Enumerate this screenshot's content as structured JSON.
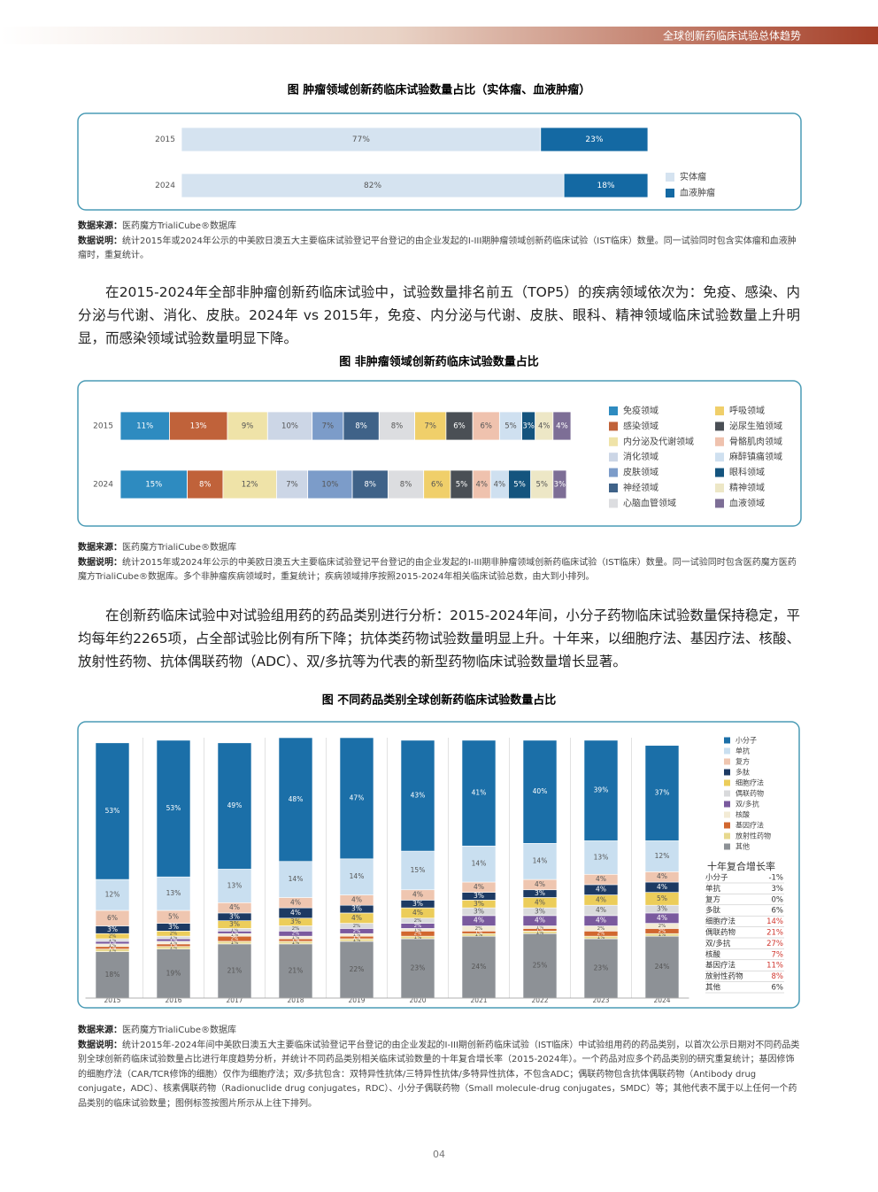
{
  "header": {
    "title": "全球创新药临床试验总体趋势"
  },
  "chart_data": [
    {
      "type": "bar",
      "orientation": "horizontal",
      "stacked": true,
      "title": "图 肿瘤领域创新药临床试验数量占比（实体瘤、血液肿瘤）",
      "categories": [
        "2015",
        "2024"
      ],
      "series": [
        {
          "name": "实体瘤",
          "color": "#d5e3f0",
          "values": [
            77,
            82
          ],
          "value_labels": [
            "77%",
            "82%"
          ]
        },
        {
          "name": "血液肿瘤",
          "color": "#1469a3",
          "values": [
            23,
            18
          ],
          "value_labels": [
            "23%",
            "18%"
          ]
        }
      ]
    },
    {
      "type": "bar",
      "orientation": "horizontal",
      "stacked": true,
      "title": "图 非肿瘤领域创新药临床试验数量占比",
      "categories": [
        "2015",
        "2024"
      ],
      "series": [
        {
          "name": "免疫领域",
          "color": "#2e8bc0",
          "values": [
            11,
            15
          ],
          "value_labels": [
            "11%",
            "15%"
          ]
        },
        {
          "name": "感染领域",
          "color": "#c0623a",
          "values": [
            13,
            8
          ],
          "value_labels": [
            "13%",
            "8%"
          ]
        },
        {
          "name": "内分泌及代谢领域",
          "color": "#efe3a8",
          "values": [
            9,
            12
          ],
          "value_labels": [
            "9%",
            "12%"
          ]
        },
        {
          "name": "消化领域",
          "color": "#ccd6e6",
          "values": [
            10,
            7
          ],
          "value_labels": [
            "10%",
            "7%"
          ]
        },
        {
          "name": "皮肤领域",
          "color": "#7c9cc9",
          "values": [
            7,
            10
          ],
          "value_labels": [
            "7%",
            "10%"
          ]
        },
        {
          "name": "神经领域",
          "color": "#3f6288",
          "values": [
            8,
            8
          ],
          "value_labels": [
            "8%",
            "8%"
          ]
        },
        {
          "name": "心脑血管领域",
          "color": "#dcdde0",
          "values": [
            8,
            8
          ],
          "value_labels": [
            "8%",
            "8%"
          ]
        },
        {
          "name": "呼吸领域",
          "color": "#f0cf6a",
          "values": [
            7,
            6
          ],
          "value_labels": [
            "7%",
            "6%"
          ]
        },
        {
          "name": "泌尿生殖领域",
          "color": "#4a4f55",
          "values": [
            6,
            5
          ],
          "value_labels": [
            "6%",
            "5%"
          ]
        },
        {
          "name": "骨骼肌肉领域",
          "color": "#efc2ae",
          "values": [
            6,
            4
          ],
          "value_labels": [
            "6%",
            "4%"
          ]
        },
        {
          "name": "麻醉镇痛领域",
          "color": "#cfe0f0",
          "values": [
            5,
            4
          ],
          "value_labels": [
            "5%",
            "4%"
          ]
        },
        {
          "name": "眼科领域",
          "color": "#14547e",
          "values": [
            3,
            5
          ],
          "value_labels": [
            "3%",
            "5%"
          ]
        },
        {
          "name": "精神领域",
          "color": "#ede7c6",
          "values": [
            4,
            5
          ],
          "value_labels": [
            "4%",
            "5%"
          ]
        },
        {
          "name": "血液领域",
          "color": "#7d6e96",
          "values": [
            4,
            3
          ],
          "value_labels": [
            "4%",
            "3%"
          ]
        }
      ]
    },
    {
      "type": "bar",
      "orientation": "vertical",
      "stacked": true,
      "title": "图 不同药品类别全球创新药临床试验数量占比",
      "categories": [
        "2015",
        "2016",
        "2017",
        "2018",
        "2019",
        "2020",
        "2021",
        "2022",
        "2023",
        "2024"
      ],
      "series": [
        {
          "name": "小分子",
          "color": "#1b6fa8",
          "values": [
            53,
            53,
            49,
            48,
            47,
            43,
            41,
            40,
            39,
            37
          ],
          "value_labels": [
            "53%",
            "53%",
            "49%",
            "48%",
            "47%",
            "43%",
            "41%",
            "40%",
            "39%",
            "37%"
          ]
        },
        {
          "name": "单抗",
          "color": "#c9dff0",
          "values": [
            12,
            13,
            13,
            14,
            14,
            15,
            14,
            14,
            13,
            12
          ],
          "value_labels": [
            "12%",
            "13%",
            "13%",
            "14%",
            "14%",
            "15%",
            "14%",
            "14%",
            "13%",
            "12%"
          ]
        },
        {
          "name": "复方",
          "color": "#efc6b0",
          "values": [
            6,
            5,
            4,
            4,
            4,
            4,
            4,
            4,
            4,
            4
          ],
          "value_labels": [
            "6%",
            "5%",
            "4%",
            "4%",
            "4%",
            "4%",
            "4%",
            "4%",
            "4%",
            "4%"
          ]
        },
        {
          "name": "多肽",
          "color": "#1d3a63",
          "values": [
            3,
            3,
            3,
            4,
            3,
            3,
            3,
            3,
            4,
            4
          ],
          "value_labels": [
            "3%",
            "3%",
            "3%",
            "4%",
            "3%",
            "3%",
            "3%",
            "3%",
            "4%",
            "4%"
          ]
        },
        {
          "name": "细胞疗法",
          "color": "#eccd5a",
          "values": [
            2,
            2,
            3,
            3,
            4,
            4,
            3,
            4,
            4,
            5
          ],
          "value_labels": [
            "2%",
            "2%",
            "3%",
            "3%",
            "4%",
            "4%",
            "3%",
            "4%",
            "4%",
            "5%"
          ]
        },
        {
          "name": "偶联药物",
          "color": "#d9dadc",
          "values": [
            1,
            1,
            1,
            2,
            2,
            2,
            3,
            3,
            4,
            3
          ],
          "value_labels": [
            "1%",
            "1%",
            "1%",
            "2%",
            "2%",
            "2%",
            "3%",
            "3%",
            "4%",
            "3%"
          ]
        },
        {
          "name": "双/多抗",
          "color": "#7a5a9e",
          "values": [
            1,
            1,
            1,
            2,
            2,
            2,
            4,
            4,
            4,
            4
          ],
          "value_labels": [
            "1%",
            "1%",
            "1%",
            "2%",
            "2%",
            "2%",
            "4%",
            "4%",
            "4%",
            "4%"
          ]
        },
        {
          "name": "核酸",
          "color": "#f3ebd5",
          "values": [
            1,
            1,
            1,
            1,
            1,
            1,
            2,
            1,
            2,
            2
          ],
          "value_labels": [
            "1%",
            "1%",
            "1%",
            "1%",
            "1%",
            "1%",
            "2%",
            "1%",
            "2%",
            "2%"
          ]
        },
        {
          "name": "基因疗法",
          "color": "#d1672f",
          "values": [
            1,
            1,
            2,
            1,
            1,
            2,
            1,
            1,
            2,
            2
          ],
          "value_labels": [
            "1%",
            "1%",
            "2%",
            "1%",
            "1%",
            "2%",
            "1%",
            "1%",
            "2%",
            "2%"
          ]
        },
        {
          "name": "放射性药物",
          "color": "#e8d98e",
          "values": [
            1,
            1,
            1,
            1,
            1,
            1,
            1,
            1,
            1,
            1
          ],
          "value_labels": [
            "1%",
            "1%",
            "1%",
            "1%",
            "1%",
            "1%",
            "1%",
            "1%",
            "1%",
            "1%"
          ]
        },
        {
          "name": "其他",
          "color": "#8d9196",
          "values": [
            18,
            19,
            21,
            21,
            22,
            23,
            24,
            25,
            23,
            24
          ],
          "value_labels": [
            "18%",
            "19%",
            "21%",
            "21%",
            "22%",
            "23%",
            "24%",
            "25%",
            "23%",
            "24%"
          ]
        }
      ]
    }
  ],
  "cagr_table": {
    "title": "十年复合增长率",
    "rows": [
      {
        "name": "小分子",
        "value": "-1%",
        "color": "#333333"
      },
      {
        "name": "单抗",
        "value": "3%",
        "color": "#333333"
      },
      {
        "name": "复方",
        "value": "0%",
        "color": "#333333"
      },
      {
        "name": "多肽",
        "value": "6%",
        "color": "#333333"
      },
      {
        "name": "细胞疗法",
        "value": "14%",
        "color": "#d0342c"
      },
      {
        "name": "偶联药物",
        "value": "21%",
        "color": "#d0342c"
      },
      {
        "name": "双/多抗",
        "value": "27%",
        "color": "#d0342c"
      },
      {
        "name": "核酸",
        "value": "7%",
        "color": "#d0342c"
      },
      {
        "name": "基因疗法",
        "value": "11%",
        "color": "#d0342c"
      },
      {
        "name": "放射性药物",
        "value": "8%",
        "color": "#d0342c"
      },
      {
        "name": "其他",
        "value": "6%",
        "color": "#333333"
      }
    ]
  },
  "sources": [
    {
      "source_label": "数据来源：",
      "source": "医药魔方TrialiCube®数据库",
      "note_label": "数据说明：",
      "note": "统计2015年或2024年公示的中美欧日澳五大主要临床试验登记平台登记的由企业发起的I-III期肿瘤领域创新药临床试验（IST临床）数量。同一试验同时包含实体瘤和血液肿瘤时，重复统计。"
    },
    {
      "source_label": "数据来源：",
      "source": "医药魔方TrialiCube®数据库",
      "note_label": "数据说明：",
      "note": "统计2015年或2024年公示的中美欧日澳五大主要临床试验登记平台登记的由企业发起的I-III期非肿瘤领域创新药临床试验（IST临床）数量。同一试验同时包含医药魔方医药魔方TrialiCube®数据库。多个非肿瘤疾病领域时，重复统计；疾病领域排序按照2015-2024年相关临床试验总数，由大到小排列。"
    },
    {
      "source_label": "数据来源：",
      "source": "医药魔方TrialiCube®数据库",
      "note_label": "数据说明：",
      "note": "统计2015年-2024年间中美欧日澳五大主要临床试验登记平台登记的由企业发起的I-III期创新药临床试验（IST临床）中试验组用药的药品类别，以首次公示日期对不同药品类别全球创新药临床试验数量占比进行年度趋势分析，并统计不同药品类别相关临床试验数量的十年复合增长率（2015-2024年）。一个药品对应多个药品类别的研究重复统计；基因修饰的细胞疗法（CAR/TCR修饰的细胞）仅作为细胞疗法；双/多抗包含：双特异性抗体/三特异性抗体/多特异性抗体，不包含ADC；偶联药物包含抗体偶联药物（Antibody drug conjugate，ADC）、核素偶联药物（Radionuclide drug conjugates，RDC）、小分子偶联药物（Small molecule-drug conjugates，SMDC）等；其他代表不属于以上任何一个药品类别的临床试验数量；图例标签按图片所示从上往下排列。"
    }
  ],
  "paragraphs": [
    "在2015-2024年全部非肿瘤创新药临床试验中，试验数量排名前五（TOP5）的疾病领域依次为：免疫、感染、内分泌与代谢、消化、皮肤。2024年 vs 2015年，免疫、内分泌与代谢、皮肤、眼科、精神领域临床试验数量上升明显，而感染领域试验数量明显下降。",
    "在创新药临床试验中对试验组用药的药品类别进行分析：2015-2024年间，小分子药物临床试验数量保持稳定，平均每年约2265项，占全部试验比例有所下降；抗体类药物试验数量明显上升。十年来，以细胞疗法、基因疗法、核酸、放射性药物、抗体偶联药物（ADC）、双/多抗等为代表的新型药物临床试验数量增长显著。"
  ],
  "page_number": "04"
}
